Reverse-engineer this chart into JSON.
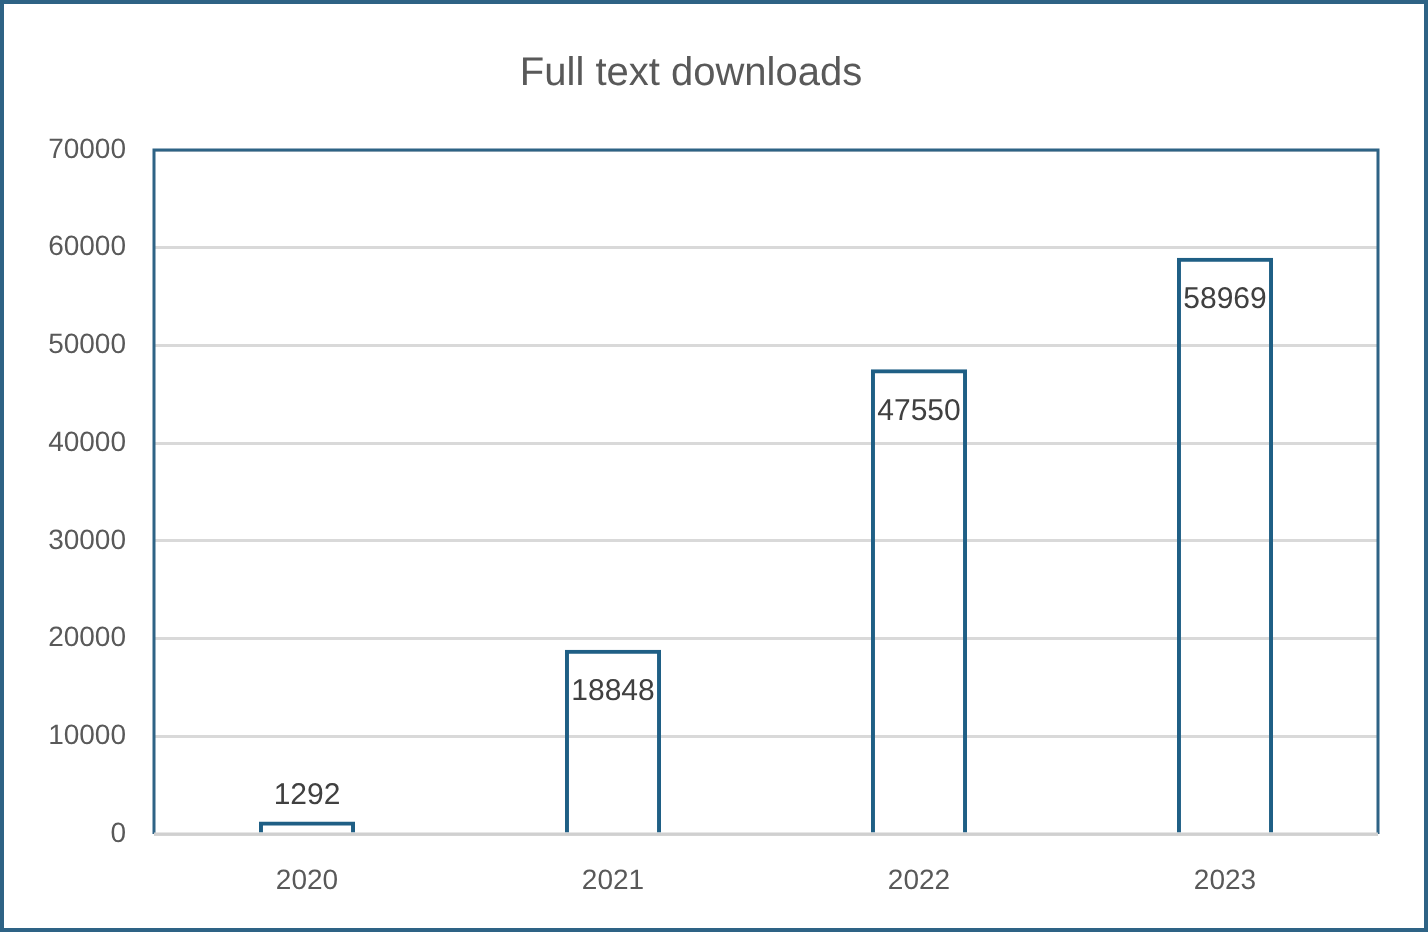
{
  "chart_data": {
    "type": "bar",
    "title": "Full text downloads",
    "categories": [
      "2020",
      "2021",
      "2022",
      "2023"
    ],
    "values": [
      1292,
      18848,
      47550,
      58969
    ],
    "color": "#1f5f85",
    "ylim": [
      0,
      70000
    ],
    "yticks": [
      0,
      10000,
      20000,
      30000,
      40000,
      50000,
      60000,
      70000
    ],
    "grid": "y",
    "data_labels": true
  }
}
